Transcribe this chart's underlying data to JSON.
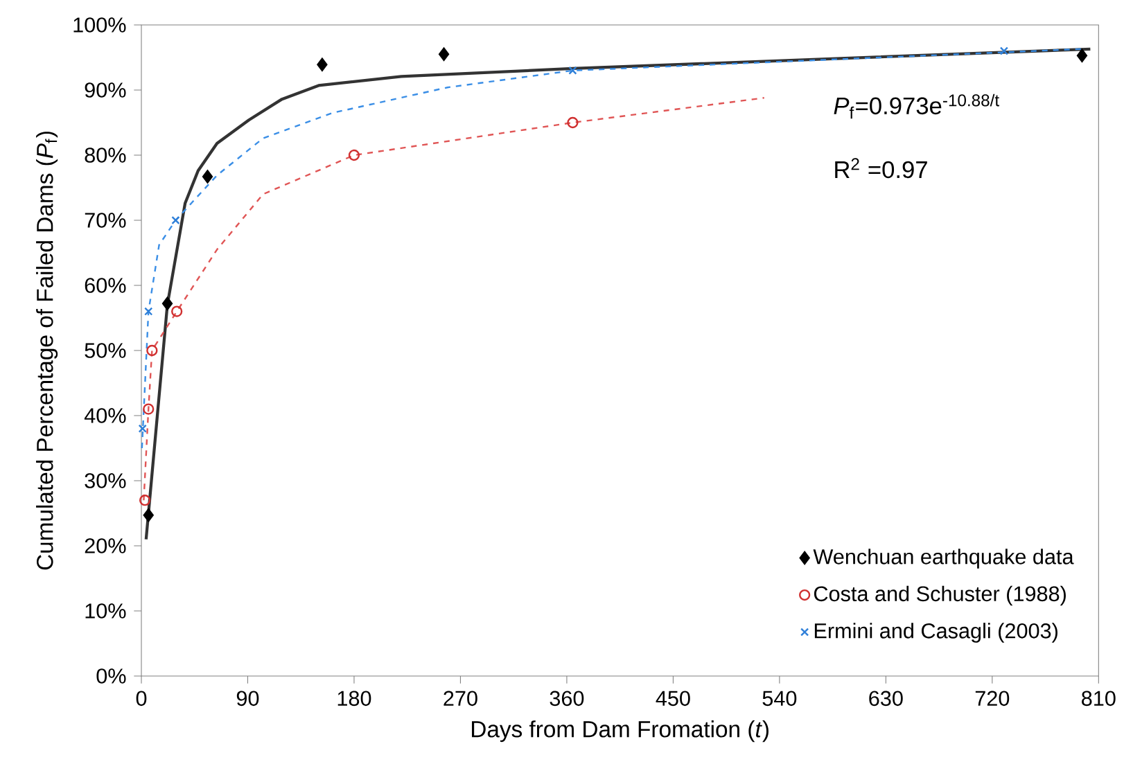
{
  "chart_data": {
    "type": "scatter",
    "xlabel": "Days from Dam Fromation (*t*)",
    "ylabel": "Cumulated  Percentage of Failed Dams (*P*$_{f}$)",
    "xlim": [
      0,
      810
    ],
    "ylim": [
      0,
      100
    ],
    "xticks": [
      0,
      90,
      180,
      270,
      360,
      450,
      540,
      630,
      720,
      810
    ],
    "yticks": [
      {
        "value": 0,
        "label": "0%"
      },
      {
        "value": 10,
        "label": "10%"
      },
      {
        "value": 20,
        "label": "20%"
      },
      {
        "value": 30,
        "label": "30%"
      },
      {
        "value": 40,
        "label": "40%"
      },
      {
        "value": 50,
        "label": "50%"
      },
      {
        "value": 60,
        "label": "60%"
      },
      {
        "value": 70,
        "label": "70%"
      },
      {
        "value": 80,
        "label": "80%"
      },
      {
        "value": 90,
        "label": "90%"
      },
      {
        "value": 100,
        "label": "100%"
      }
    ],
    "legend": "bottom right",
    "annotations": [
      "*P*$_{f}$=0.973e$^{-10.88/t}$",
      "R$^{2}$ =0.97"
    ],
    "series": [
      {
        "type": "line",
        "color": "#333333",
        "line_style": "solid",
        "marker": "none",
        "x": [
          4,
          6,
          22,
          37,
          48,
          64,
          91,
          119,
          150,
          220,
          365,
          803
        ],
        "values": [
          21,
          25,
          57,
          72.6,
          77.6,
          81.8,
          85.4,
          88.6,
          90.7,
          92.1,
          93.3,
          96.3
        ]
      },
      {
        "type": "line",
        "color": "#e05555",
        "line_style": "dashed",
        "marker": "none",
        "x": [
          2,
          6,
          9,
          30,
          64,
          103,
          180,
          365,
          527
        ],
        "values": [
          27,
          41,
          50,
          56,
          65.5,
          74,
          80,
          85,
          88.8
        ]
      },
      {
        "type": "line",
        "color": "#3a8ee6",
        "line_style": "dashed",
        "marker": "none",
        "x": [
          0.5,
          6,
          15,
          29,
          64,
          103,
          162,
          259,
          365,
          795
        ],
        "values": [
          35,
          56,
          66.2,
          70,
          76.9,
          82.6,
          86.5,
          90.4,
          93,
          96.3
        ]
      },
      {
        "name": "Wenchuan earthquake data",
        "color": "#000000",
        "marker": "diamond",
        "x": [
          6,
          22,
          56,
          153,
          256,
          796
        ],
        "values": [
          24.7,
          57.2,
          76.7,
          93.9,
          95.5,
          95.3
        ]
      },
      {
        "name": "Costa and Schuster (1988)",
        "color": "#d03030",
        "marker": "circle",
        "x": [
          3,
          6,
          9,
          30,
          180,
          365
        ],
        "values": [
          27,
          41,
          50,
          56,
          80,
          85
        ]
      },
      {
        "name": "Ermini and Casagli (2003)",
        "color": "#2e7fd8",
        "marker": "cross",
        "x": [
          1,
          6,
          29,
          365,
          730
        ],
        "values": [
          38,
          56,
          70,
          93,
          96
        ]
      }
    ]
  }
}
